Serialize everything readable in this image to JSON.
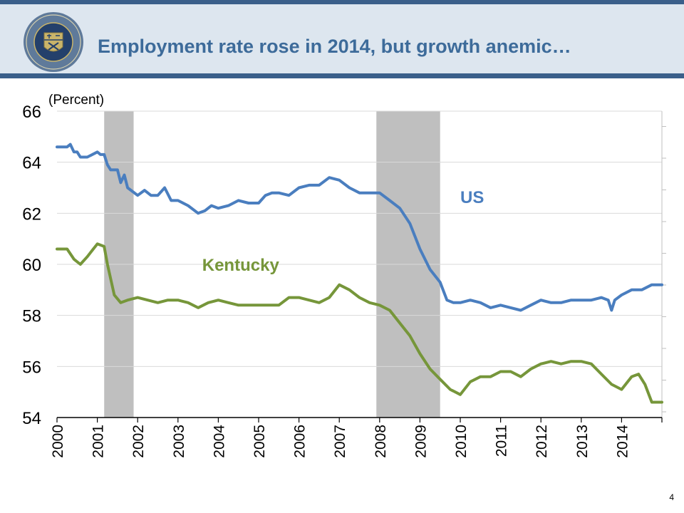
{
  "slide": {
    "title": "Employment rate rose in 2014, but growth anemic…",
    "page_number": "4"
  },
  "colors": {
    "us": "#4a7ebf",
    "kentucky": "#76963a",
    "recession": "#bfbfbf",
    "title": "#3d6b9a"
  },
  "icons": {
    "seal": "treasury-seal-icon"
  },
  "chart_data": {
    "type": "line",
    "ylabel": "(Percent)",
    "xlabel": "",
    "title": "",
    "ylim": [
      54,
      66
    ],
    "yticks": [
      54,
      56,
      58,
      60,
      62,
      64,
      66
    ],
    "xlim": [
      2000,
      2015
    ],
    "xticks": [
      "2000",
      "2001",
      "2002",
      "2003",
      "2004",
      "2005",
      "2006",
      "2007",
      "2008",
      "2009",
      "2010",
      "2011",
      "2012",
      "2013",
      "2014"
    ],
    "grid": "horizontal",
    "recessions": [
      [
        2001.17,
        2001.9
      ],
      [
        2007.92,
        2009.5
      ]
    ],
    "series": [
      {
        "name": "US",
        "x": [
          2000.0,
          2000.25,
          2000.33,
          2000.42,
          2000.5,
          2000.58,
          2000.75,
          2001.0,
          2001.08,
          2001.17,
          2001.25,
          2001.33,
          2001.5,
          2001.58,
          2001.67,
          2001.75,
          2002.0,
          2002.17,
          2002.33,
          2002.5,
          2002.67,
          2002.83,
          2003.0,
          2003.25,
          2003.5,
          2003.67,
          2003.83,
          2004.0,
          2004.25,
          2004.5,
          2004.75,
          2005.0,
          2005.17,
          2005.33,
          2005.5,
          2005.75,
          2006.0,
          2006.25,
          2006.5,
          2006.75,
          2007.0,
          2007.25,
          2007.5,
          2007.75,
          2008.0,
          2008.25,
          2008.5,
          2008.75,
          2009.0,
          2009.25,
          2009.5,
          2009.67,
          2009.83,
          2010.0,
          2010.25,
          2010.5,
          2010.75,
          2011.0,
          2011.25,
          2011.5,
          2011.75,
          2012.0,
          2012.25,
          2012.5,
          2012.75,
          2013.0,
          2013.25,
          2013.5,
          2013.67,
          2013.75,
          2013.83,
          2014.0,
          2014.25,
          2014.5,
          2014.75,
          2015.0
        ],
        "values": [
          64.6,
          64.6,
          64.7,
          64.4,
          64.4,
          64.2,
          64.2,
          64.4,
          64.3,
          64.3,
          63.9,
          63.7,
          63.7,
          63.2,
          63.5,
          63.0,
          62.7,
          62.9,
          62.7,
          62.7,
          63.0,
          62.5,
          62.5,
          62.3,
          62.0,
          62.1,
          62.3,
          62.2,
          62.3,
          62.5,
          62.4,
          62.4,
          62.7,
          62.8,
          62.8,
          62.7,
          63.0,
          63.1,
          63.1,
          63.4,
          63.3,
          63.0,
          62.8,
          62.8,
          62.8,
          62.5,
          62.2,
          61.6,
          60.6,
          59.8,
          59.3,
          58.6,
          58.5,
          58.5,
          58.6,
          58.5,
          58.3,
          58.4,
          58.3,
          58.2,
          58.4,
          58.6,
          58.5,
          58.5,
          58.6,
          58.6,
          58.6,
          58.7,
          58.6,
          58.2,
          58.6,
          58.8,
          59.0,
          59.0,
          59.2,
          59.2
        ]
      },
      {
        "name": "Kentucky",
        "x": [
          2000.0,
          2000.25,
          2000.42,
          2000.58,
          2000.75,
          2001.0,
          2001.17,
          2001.25,
          2001.42,
          2001.58,
          2001.75,
          2002.0,
          2002.25,
          2002.5,
          2002.75,
          2003.0,
          2003.25,
          2003.5,
          2003.75,
          2004.0,
          2004.25,
          2004.5,
          2004.75,
          2005.0,
          2005.25,
          2005.5,
          2005.75,
          2006.0,
          2006.25,
          2006.5,
          2006.75,
          2007.0,
          2007.25,
          2007.5,
          2007.75,
          2008.0,
          2008.25,
          2008.5,
          2008.75,
          2009.0,
          2009.25,
          2009.5,
          2009.75,
          2010.0,
          2010.25,
          2010.5,
          2010.75,
          2011.0,
          2011.25,
          2011.5,
          2011.75,
          2012.0,
          2012.25,
          2012.5,
          2012.75,
          2013.0,
          2013.25,
          2013.5,
          2013.75,
          2014.0,
          2014.25,
          2014.42,
          2014.58,
          2014.75,
          2015.0
        ],
        "values": [
          60.6,
          60.6,
          60.2,
          60.0,
          60.3,
          60.8,
          60.7,
          60.0,
          58.8,
          58.5,
          58.6,
          58.7,
          58.6,
          58.5,
          58.6,
          58.6,
          58.5,
          58.3,
          58.5,
          58.6,
          58.5,
          58.4,
          58.4,
          58.4,
          58.4,
          58.4,
          58.7,
          58.7,
          58.6,
          58.5,
          58.7,
          59.2,
          59.0,
          58.7,
          58.5,
          58.4,
          58.2,
          57.7,
          57.2,
          56.5,
          55.9,
          55.5,
          55.1,
          54.9,
          55.4,
          55.6,
          55.6,
          55.8,
          55.8,
          55.6,
          55.9,
          56.1,
          56.2,
          56.1,
          56.2,
          56.2,
          56.1,
          55.7,
          55.3,
          55.1,
          55.6,
          55.7,
          55.3,
          54.6,
          54.6
        ]
      }
    ],
    "annotations": [
      {
        "text": "US",
        "x": 2010.0,
        "y": 62.4
      },
      {
        "text": "Kentucky",
        "x": 2003.6,
        "y": 59.75
      }
    ]
  }
}
